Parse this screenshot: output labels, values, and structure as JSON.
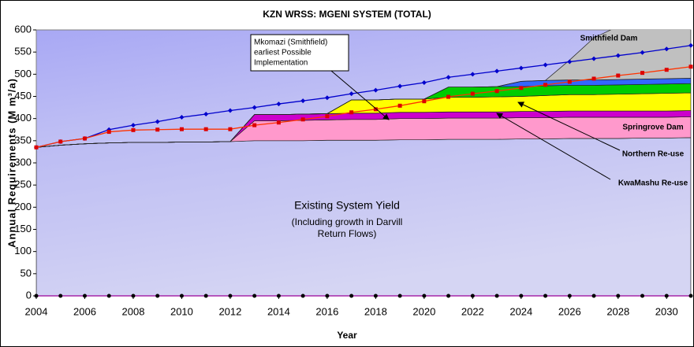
{
  "chart_data": {
    "type": "stacked_area",
    "title": "KZN WRSS: MGENI SYSTEM (TOTAL)",
    "x_label": "Year",
    "y_label": "Annual Requirements (M m³/a)",
    "x": [
      2004,
      2005,
      2006,
      2007,
      2008,
      2009,
      2010,
      2011,
      2012,
      2013,
      2014,
      2015,
      2016,
      2017,
      2018,
      2019,
      2020,
      2021,
      2022,
      2023,
      2024,
      2025,
      2026,
      2027,
      2028,
      2029,
      2030,
      2031
    ],
    "xlim": [
      2004,
      2031
    ],
    "xticks": [
      2004,
      2006,
      2008,
      2010,
      2012,
      2014,
      2016,
      2018,
      2020,
      2022,
      2024,
      2026,
      2028,
      2030
    ],
    "ylim": [
      0,
      600
    ],
    "yticks": [
      0,
      50,
      100,
      150,
      200,
      250,
      300,
      350,
      400,
      450,
      500,
      550,
      600
    ],
    "series": [
      {
        "name": "Existing System Yield",
        "color": "#b4b4f0",
        "values": [
          335,
          340,
          343,
          345,
          346,
          346,
          347,
          347,
          348,
          350,
          350,
          350,
          351,
          351,
          351,
          352,
          352,
          353,
          353,
          353,
          354,
          354,
          355,
          355,
          355,
          356,
          356,
          357
        ]
      },
      {
        "name": "Springrove Dam",
        "color": "#ff99cc",
        "values": [
          0,
          0,
          0,
          0,
          0,
          0,
          0,
          0,
          0,
          45,
          45,
          46,
          46,
          47,
          47,
          48,
          48,
          48,
          48,
          48,
          48,
          48,
          48,
          48,
          48,
          47,
          47,
          47
        ]
      },
      {
        "color": "#cc00cc",
        "values": [
          0,
          0,
          0,
          0,
          0,
          0,
          0,
          0,
          0,
          14,
          14,
          14,
          14,
          14,
          14,
          14,
          14,
          14,
          14,
          14,
          14,
          14,
          14,
          14,
          14,
          14,
          14,
          14
        ]
      },
      {
        "name": "KwaMashu Re-use",
        "color": "#ffff00",
        "values": [
          0,
          0,
          0,
          0,
          0,
          0,
          0,
          0,
          0,
          0,
          0,
          0,
          0,
          30,
          30,
          30,
          30,
          33,
          33,
          34,
          34,
          36,
          37,
          37,
          38,
          39,
          40,
          40
        ]
      },
      {
        "name": "Northern Re-use",
        "color": "#00cc00",
        "values": [
          0,
          0,
          0,
          0,
          0,
          0,
          0,
          0,
          0,
          0,
          0,
          0,
          0,
          0,
          0,
          0,
          0,
          23,
          23,
          23,
          22,
          22,
          21,
          21,
          21,
          21,
          21,
          21
        ]
      },
      {
        "color": "#3366ff",
        "values": [
          0,
          0,
          0,
          0,
          0,
          0,
          0,
          0,
          0,
          0,
          0,
          0,
          0,
          0,
          0,
          0,
          0,
          0,
          0,
          0,
          12,
          12,
          12,
          12,
          12,
          12,
          12,
          12
        ]
      },
      {
        "name": "Smithfield Dam",
        "color": "#c0c0c0",
        "values": [
          0,
          0,
          0,
          0,
          0,
          0,
          0,
          0,
          0,
          0,
          0,
          0,
          0,
          0,
          0,
          0,
          0,
          0,
          0,
          0,
          0,
          0,
          45,
          95,
          120,
          120,
          120,
          120
        ]
      }
    ],
    "lines": [
      {
        "color": "#0000cc",
        "marker_color": "#0000cc",
        "values": [
          335,
          348,
          355,
          375,
          385,
          393,
          403,
          410,
          418,
          425,
          433,
          440,
          447,
          456,
          464,
          473,
          481,
          493,
          500,
          507,
          514,
          521,
          528,
          535,
          542,
          549,
          557,
          565
        ]
      },
      {
        "color": "#ff3300",
        "marker_color": "#dd0000",
        "values": [
          335,
          348,
          355,
          370,
          374,
          375,
          376,
          376,
          376,
          385,
          391,
          398,
          405,
          414,
          421,
          429,
          439,
          449,
          456,
          462,
          469,
          476,
          483,
          490,
          497,
          503,
          510,
          517
        ]
      },
      {
        "color": "#990099",
        "marker_color": "#000000",
        "values": [
          0,
          0,
          0,
          0,
          0,
          0,
          0,
          0,
          0,
          0,
          0,
          0,
          0,
          0,
          0,
          0,
          0,
          0,
          0,
          0,
          0,
          0,
          0,
          0,
          0,
          0,
          0,
          0
        ]
      }
    ],
    "annotations": [
      {
        "lines": [
          "Mkomazi (Smithfield)",
          "earliest Possible",
          "Implementation"
        ]
      },
      {
        "lines": [
          "(Including growth in Darvill",
          "Return Flows)"
        ]
      }
    ]
  }
}
